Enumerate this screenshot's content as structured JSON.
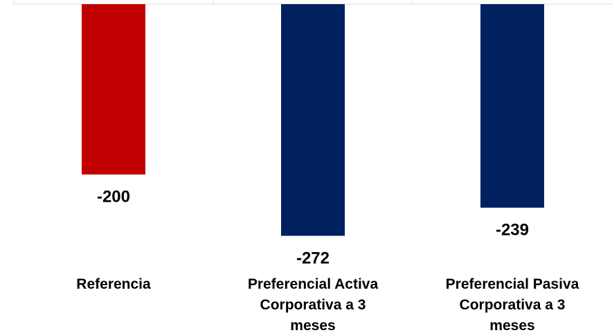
{
  "chart_data": {
    "type": "bar",
    "categories": [
      [
        "Referencia"
      ],
      [
        "Preferencial Activa",
        "Corporativa a 3",
        "meses"
      ],
      [
        "Preferencial Pasiva",
        "Corporativa a 3",
        "meses"
      ]
    ],
    "values": [
      -200,
      -272,
      -239
    ],
    "value_labels": [
      "-200",
      "-272",
      "-239"
    ],
    "colors": [
      "#c00000",
      "#002060",
      "#002060"
    ],
    "ylim": [
      -295,
      0
    ],
    "grid": false,
    "legend": "none"
  }
}
